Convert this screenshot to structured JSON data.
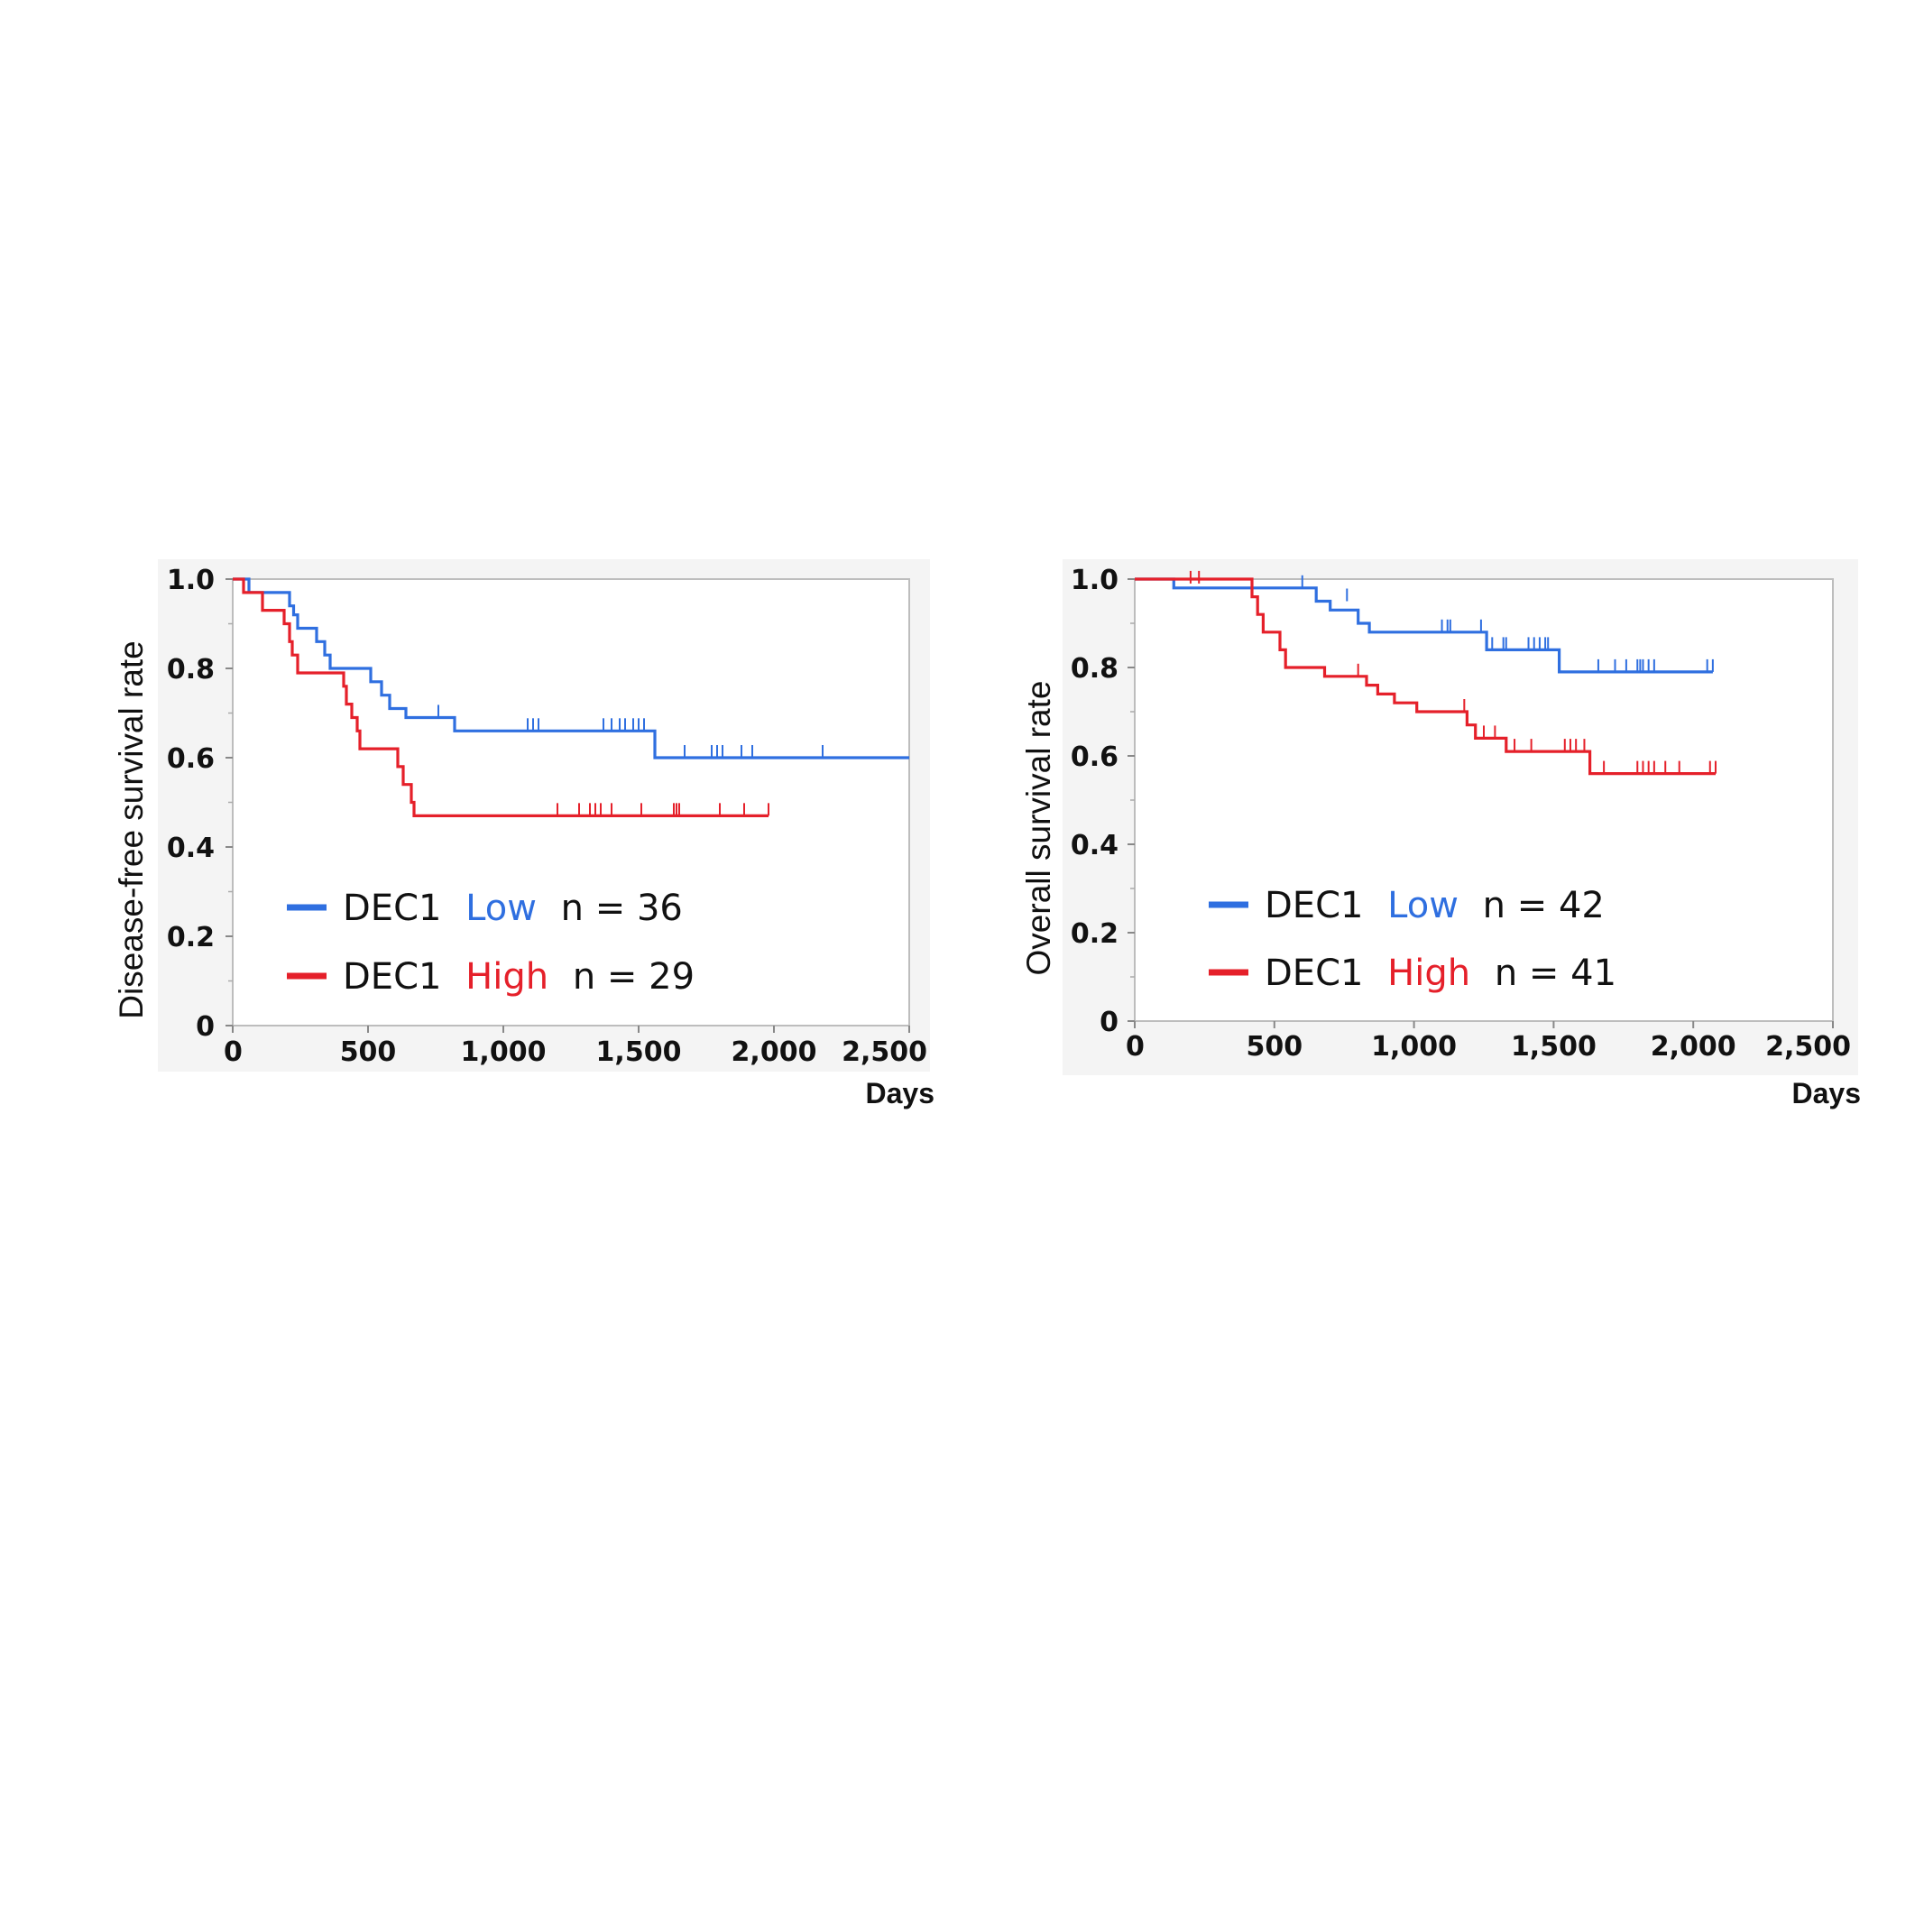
{
  "chart_data": [
    {
      "type": "line",
      "subtype": "kaplan-meier",
      "ylabel": "Disease-free survival rate",
      "xlabel": "Days",
      "xlim": [
        0,
        2500
      ],
      "ylim": [
        0,
        1.0
      ],
      "x_ticks": [
        "0",
        "500",
        "1,000",
        "1,500",
        "2,000",
        "2,500"
      ],
      "y_ticks": [
        "0",
        "0.2",
        "0.4",
        "0.6",
        "0.8",
        "1.0"
      ],
      "grid": false,
      "legend_position": "bottom-left",
      "series": [
        {
          "legend": {
            "prefix": "DEC1",
            "group": "Low",
            "count_text": "n = 36"
          },
          "color": "#2f6fe0",
          "steps": [
            [
              0,
              1.0
            ],
            [
              60,
              0.97
            ],
            [
              210,
              0.94
            ],
            [
              225,
              0.92
            ],
            [
              240,
              0.89
            ],
            [
              310,
              0.86
            ],
            [
              340,
              0.83
            ],
            [
              360,
              0.8
            ],
            [
              510,
              0.77
            ],
            [
              550,
              0.74
            ],
            [
              580,
              0.71
            ],
            [
              640,
              0.69
            ],
            [
              820,
              0.66
            ],
            [
              1560,
              0.6
            ],
            [
              2500,
              0.6
            ]
          ],
          "censors": [
            [
              760,
              0.69
            ],
            [
              1090,
              0.66
            ],
            [
              1110,
              0.66
            ],
            [
              1130,
              0.66
            ],
            [
              1370,
              0.66
            ],
            [
              1400,
              0.66
            ],
            [
              1430,
              0.66
            ],
            [
              1450,
              0.66
            ],
            [
              1480,
              0.66
            ],
            [
              1500,
              0.66
            ],
            [
              1520,
              0.66
            ],
            [
              1670,
              0.6
            ],
            [
              1770,
              0.6
            ],
            [
              1790,
              0.6
            ],
            [
              1810,
              0.6
            ],
            [
              1880,
              0.6
            ],
            [
              1920,
              0.6
            ],
            [
              2180,
              0.6
            ]
          ]
        },
        {
          "legend": {
            "prefix": "DEC1",
            "group": "High",
            "count_text": "n = 29"
          },
          "color": "#e5202a",
          "steps": [
            [
              0,
              1.0
            ],
            [
              40,
              0.97
            ],
            [
              110,
              0.93
            ],
            [
              190,
              0.9
            ],
            [
              210,
              0.86
            ],
            [
              220,
              0.83
            ],
            [
              240,
              0.79
            ],
            [
              410,
              0.76
            ],
            [
              420,
              0.72
            ],
            [
              440,
              0.69
            ],
            [
              460,
              0.66
            ],
            [
              470,
              0.62
            ],
            [
              610,
              0.58
            ],
            [
              630,
              0.54
            ],
            [
              660,
              0.5
            ],
            [
              670,
              0.47
            ],
            [
              1980,
              0.47
            ]
          ],
          "censors": [
            [
              1200,
              0.47
            ],
            [
              1280,
              0.47
            ],
            [
              1320,
              0.47
            ],
            [
              1340,
              0.47
            ],
            [
              1360,
              0.47
            ],
            [
              1400,
              0.47
            ],
            [
              1510,
              0.47
            ],
            [
              1630,
              0.47
            ],
            [
              1640,
              0.47
            ],
            [
              1650,
              0.47
            ],
            [
              1800,
              0.47
            ],
            [
              1890,
              0.47
            ],
            [
              1980,
              0.47
            ]
          ]
        }
      ]
    },
    {
      "type": "line",
      "subtype": "kaplan-meier",
      "ylabel": "Overall survival rate",
      "xlabel": "Days",
      "xlim": [
        0,
        2500
      ],
      "ylim": [
        0,
        1.0
      ],
      "x_ticks": [
        "0",
        "500",
        "1,000",
        "1,500",
        "2,000",
        "2,500"
      ],
      "y_ticks": [
        "0",
        "0.2",
        "0.4",
        "0.6",
        "0.8",
        "1.0"
      ],
      "grid": false,
      "legend_position": "bottom-left",
      "series": [
        {
          "legend": {
            "prefix": "DEC1",
            "group": "Low",
            "count_text": "n = 42"
          },
          "color": "#2f6fe0",
          "steps": [
            [
              0,
              1.0
            ],
            [
              140,
              0.98
            ],
            [
              650,
              0.95
            ],
            [
              700,
              0.93
            ],
            [
              800,
              0.9
            ],
            [
              840,
              0.88
            ],
            [
              1260,
              0.84
            ],
            [
              1520,
              0.79
            ],
            [
              2070,
              0.79
            ]
          ],
          "censors": [
            [
              600,
              0.98
            ],
            [
              760,
              0.95
            ],
            [
              1100,
              0.88
            ],
            [
              1120,
              0.88
            ],
            [
              1130,
              0.88
            ],
            [
              1240,
              0.88
            ],
            [
              1280,
              0.84
            ],
            [
              1320,
              0.84
            ],
            [
              1330,
              0.84
            ],
            [
              1410,
              0.84
            ],
            [
              1430,
              0.84
            ],
            [
              1450,
              0.84
            ],
            [
              1470,
              0.84
            ],
            [
              1480,
              0.84
            ],
            [
              1660,
              0.79
            ],
            [
              1720,
              0.79
            ],
            [
              1760,
              0.79
            ],
            [
              1800,
              0.79
            ],
            [
              1810,
              0.79
            ],
            [
              1820,
              0.79
            ],
            [
              1840,
              0.79
            ],
            [
              1860,
              0.79
            ],
            [
              2050,
              0.79
            ],
            [
              2070,
              0.79
            ]
          ]
        },
        {
          "legend": {
            "prefix": "DEC1",
            "group": "High",
            "count_text": "n = 41"
          },
          "color": "#e5202a",
          "steps": [
            [
              0,
              1.0
            ],
            [
              420,
              0.96
            ],
            [
              440,
              0.92
            ],
            [
              460,
              0.88
            ],
            [
              520,
              0.84
            ],
            [
              540,
              0.8
            ],
            [
              680,
              0.78
            ],
            [
              830,
              0.76
            ],
            [
              870,
              0.74
            ],
            [
              930,
              0.72
            ],
            [
              1010,
              0.7
            ],
            [
              1190,
              0.67
            ],
            [
              1220,
              0.64
            ],
            [
              1330,
              0.61
            ],
            [
              1630,
              0.56
            ],
            [
              2080,
              0.56
            ]
          ],
          "censors": [
            [
              200,
              0.99
            ],
            [
              230,
              0.99
            ],
            [
              800,
              0.78
            ],
            [
              1180,
              0.7
            ],
            [
              1250,
              0.64
            ],
            [
              1290,
              0.64
            ],
            [
              1360,
              0.61
            ],
            [
              1420,
              0.61
            ],
            [
              1540,
              0.61
            ],
            [
              1560,
              0.61
            ],
            [
              1580,
              0.61
            ],
            [
              1610,
              0.61
            ],
            [
              1680,
              0.56
            ],
            [
              1800,
              0.56
            ],
            [
              1820,
              0.56
            ],
            [
              1840,
              0.56
            ],
            [
              1860,
              0.56
            ],
            [
              1900,
              0.56
            ],
            [
              1950,
              0.56
            ],
            [
              2060,
              0.56
            ],
            [
              2080,
              0.56
            ]
          ]
        }
      ]
    }
  ]
}
